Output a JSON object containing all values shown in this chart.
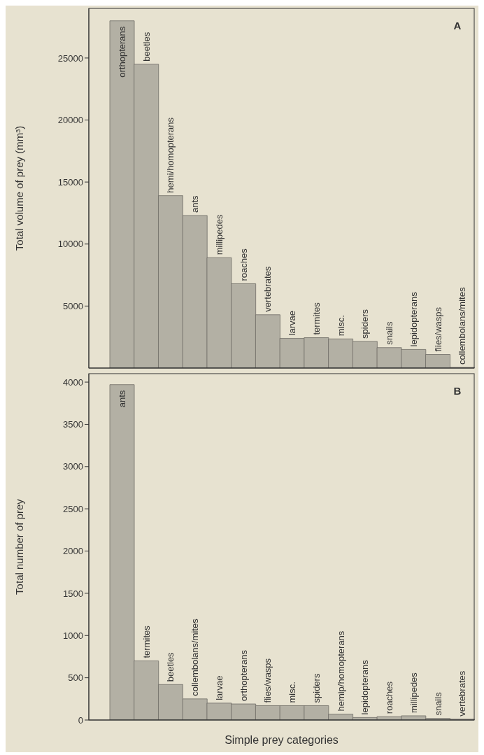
{
  "chart_data": [
    {
      "type": "bar",
      "ylabel": "Total volume of prey (mm³)",
      "annotations": [
        "A"
      ],
      "tick_labels": "y",
      "color": "#b3b0a4",
      "categories": [
        "orthopterans",
        "beetles",
        "hemi/homopterans",
        "ants",
        "millipedes",
        "roaches",
        "vertebrates",
        "larvae",
        "termites",
        "misc.",
        "spiders",
        "snails",
        "lepidopterans",
        "flies/wasps",
        "collembolans/mites"
      ],
      "values": [
        28000,
        24500,
        13900,
        12300,
        8900,
        6800,
        4300,
        2400,
        2450,
        2350,
        2150,
        1650,
        1500,
        1100,
        50
      ],
      "ylim": [
        0,
        29000
      ],
      "yticks": [
        5000,
        10000,
        15000,
        20000,
        25000
      ]
    },
    {
      "type": "bar",
      "ylabel": "Total number of prey",
      "xlabel": "Simple prey categories",
      "annotations": [
        "B"
      ],
      "tick_labels": "y",
      "color": "#b3b0a4",
      "categories": [
        "ants",
        "termites",
        "beetles",
        "collembolans/mites",
        "larvae",
        "orthopterans",
        "flies/wasps",
        "misc.",
        "spiders",
        "hemip/homopterans",
        "lepidopterans",
        "roaches",
        "millipedes",
        "snails",
        "vertebrates"
      ],
      "values": [
        3970,
        700,
        420,
        250,
        200,
        190,
        170,
        170,
        170,
        70,
        30,
        40,
        50,
        20,
        10
      ],
      "ylim": [
        0,
        4100
      ],
      "yticks": [
        0,
        500,
        1000,
        1500,
        2000,
        2500,
        3000,
        3500,
        4000
      ]
    }
  ]
}
